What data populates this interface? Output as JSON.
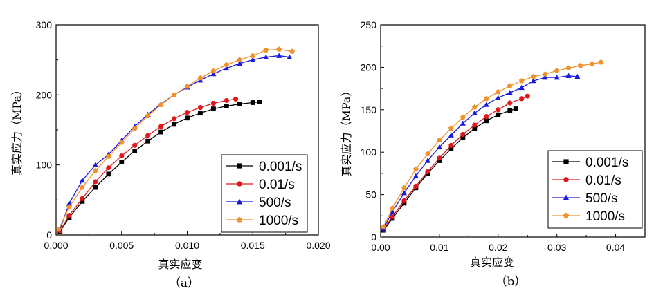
{
  "chart_data": [
    {
      "panel": "(a)",
      "type": "line",
      "caption": "（a）",
      "xlabel": "真实应变",
      "ylabel": "真实应力（MPa）",
      "xlim": [
        0,
        0.02
      ],
      "ylim": [
        0,
        300
      ],
      "xticks": [
        "0.000",
        "0.005",
        "0.010",
        "0.015",
        "0.020"
      ],
      "yticks": [
        "0",
        "100",
        "200",
        "300"
      ],
      "xtick_values": [
        0,
        0.005,
        0.01,
        0.015,
        0.02
      ],
      "ytick_values": [
        0,
        100,
        200,
        300
      ],
      "grid": false,
      "legend_position": "bottom-right",
      "series": [
        {
          "name": "0.001/s",
          "color": "#000000",
          "marker": "square",
          "x": [
            0.0003,
            0.001,
            0.002,
            0.003,
            0.004,
            0.005,
            0.006,
            0.007,
            0.008,
            0.009,
            0.01,
            0.011,
            0.012,
            0.013,
            0.014,
            0.015,
            0.0155
          ],
          "y": [
            5,
            25,
            48,
            68,
            87,
            104,
            120,
            134,
            147,
            158,
            167,
            174,
            180,
            184,
            187,
            189,
            190
          ]
        },
        {
          "name": "0.01/s",
          "color": "#e0181c",
          "marker": "circle",
          "x": [
            0.0003,
            0.001,
            0.002,
            0.003,
            0.004,
            0.005,
            0.006,
            0.007,
            0.008,
            0.009,
            0.01,
            0.011,
            0.012,
            0.013,
            0.0137
          ],
          "y": [
            6,
            28,
            52,
            76,
            96,
            113,
            128,
            142,
            155,
            166,
            175,
            182,
            188,
            192,
            194
          ]
        },
        {
          "name": "500/s",
          "color": "#1818e0",
          "marker": "triangle",
          "x": [
            0.0003,
            0.001,
            0.002,
            0.003,
            0.004,
            0.005,
            0.006,
            0.007,
            0.008,
            0.009,
            0.01,
            0.011,
            0.012,
            0.013,
            0.014,
            0.015,
            0.016,
            0.017,
            0.0178
          ],
          "y": [
            8,
            45,
            78,
            100,
            115,
            135,
            155,
            172,
            187,
            200,
            211,
            221,
            230,
            238,
            245,
            250,
            254,
            256,
            254
          ]
        },
        {
          "name": "1000/s",
          "color": "#f0922e",
          "marker": "pentagon",
          "x": [
            0.0002,
            0.001,
            0.002,
            0.003,
            0.004,
            0.005,
            0.006,
            0.007,
            0.008,
            0.009,
            0.01,
            0.011,
            0.012,
            0.013,
            0.014,
            0.015,
            0.016,
            0.017,
            0.018
          ],
          "y": [
            8,
            40,
            68,
            92,
            112,
            132,
            152,
            170,
            186,
            200,
            212,
            224,
            234,
            243,
            250,
            256,
            264,
            265,
            262
          ]
        }
      ]
    },
    {
      "panel": "(b)",
      "type": "line",
      "caption": "（b）",
      "xlabel": "真实应变",
      "ylabel": "真实应力（MPa）",
      "xlim": [
        0,
        0.045
      ],
      "ylim": [
        0,
        250
      ],
      "xticks": [
        "0.00",
        "0.01",
        "0.02",
        "0.03",
        "0.04"
      ],
      "yticks": [
        "0",
        "50",
        "100",
        "150",
        "200",
        "250"
      ],
      "xtick_values": [
        0,
        0.01,
        0.02,
        0.03,
        0.04
      ],
      "ytick_values": [
        0,
        50,
        100,
        150,
        200,
        250
      ],
      "grid": false,
      "legend_position": "bottom-right",
      "series": [
        {
          "name": "0.001/s",
          "color": "#000000",
          "marker": "square",
          "x": [
            0.0005,
            0.002,
            0.004,
            0.006,
            0.008,
            0.01,
            0.012,
            0.014,
            0.016,
            0.018,
            0.02,
            0.022,
            0.023
          ],
          "y": [
            8,
            22,
            40,
            58,
            75,
            90,
            104,
            117,
            128,
            137,
            144,
            149,
            151
          ]
        },
        {
          "name": "0.01/s",
          "color": "#e0181c",
          "marker": "circle",
          "x": [
            0.0005,
            0.002,
            0.004,
            0.006,
            0.008,
            0.01,
            0.012,
            0.014,
            0.016,
            0.018,
            0.02,
            0.022,
            0.024,
            0.025
          ],
          "y": [
            9,
            24,
            43,
            60,
            77,
            93,
            108,
            121,
            132,
            142,
            150,
            158,
            163,
            166
          ]
        },
        {
          "name": "500/s",
          "color": "#1818e0",
          "marker": "triangle",
          "x": [
            0.0005,
            0.002,
            0.004,
            0.006,
            0.008,
            0.01,
            0.012,
            0.014,
            0.016,
            0.018,
            0.02,
            0.022,
            0.024,
            0.026,
            0.028,
            0.03,
            0.032,
            0.0335
          ],
          "y": [
            10,
            30,
            52,
            72,
            90,
            106,
            120,
            134,
            146,
            156,
            164,
            170,
            176,
            184,
            188,
            188,
            190,
            189
          ]
        },
        {
          "name": "1000/s",
          "color": "#f0922e",
          "marker": "pentagon",
          "x": [
            0.0005,
            0.002,
            0.004,
            0.006,
            0.008,
            0.01,
            0.012,
            0.014,
            0.016,
            0.018,
            0.02,
            0.022,
            0.024,
            0.026,
            0.028,
            0.03,
            0.032,
            0.034,
            0.036,
            0.0375
          ],
          "y": [
            12,
            34,
            58,
            80,
            98,
            114,
            128,
            141,
            153,
            163,
            171,
            178,
            184,
            189,
            192,
            196,
            199,
            202,
            204,
            206
          ]
        }
      ]
    }
  ]
}
